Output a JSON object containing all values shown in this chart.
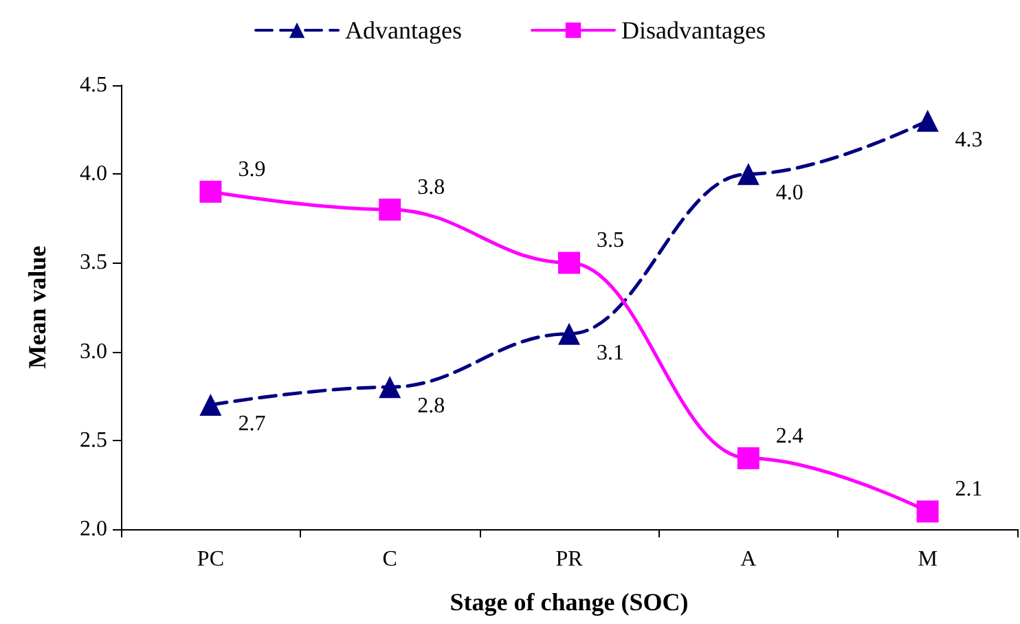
{
  "chart_data": {
    "type": "line",
    "xlabel": "Stage of change (SOC)",
    "ylabel": "Mean value",
    "categories": [
      "PC",
      "C",
      "PR",
      "A",
      "M"
    ],
    "series": [
      {
        "name": "Advantages",
        "color": "#000080",
        "values": [
          2.7,
          2.8,
          3.1,
          4.0,
          4.3
        ],
        "value_labels": [
          "2.7",
          "2.8",
          "3.1",
          "4.0",
          "4.3"
        ],
        "marker": "triangle",
        "line_style": "dashed"
      },
      {
        "name": "Disadvantages",
        "color": "#ff00ff",
        "values": [
          3.9,
          3.8,
          3.5,
          2.4,
          2.1
        ],
        "value_labels": [
          "3.9",
          "3.8",
          "3.5",
          "2.4",
          "2.1"
        ],
        "marker": "square",
        "line_style": "solid"
      }
    ],
    "ylim": [
      2.0,
      4.5
    ],
    "yticks": [
      {
        "value": 2.0,
        "label": "2.0"
      },
      {
        "value": 2.5,
        "label": "2.5"
      },
      {
        "value": 3.0,
        "label": "3.0"
      },
      {
        "value": 3.5,
        "label": "3.5"
      },
      {
        "value": 4.0,
        "label": "4.0"
      },
      {
        "value": 4.5,
        "label": "4.5"
      }
    ],
    "grid": false,
    "legend": "top"
  }
}
